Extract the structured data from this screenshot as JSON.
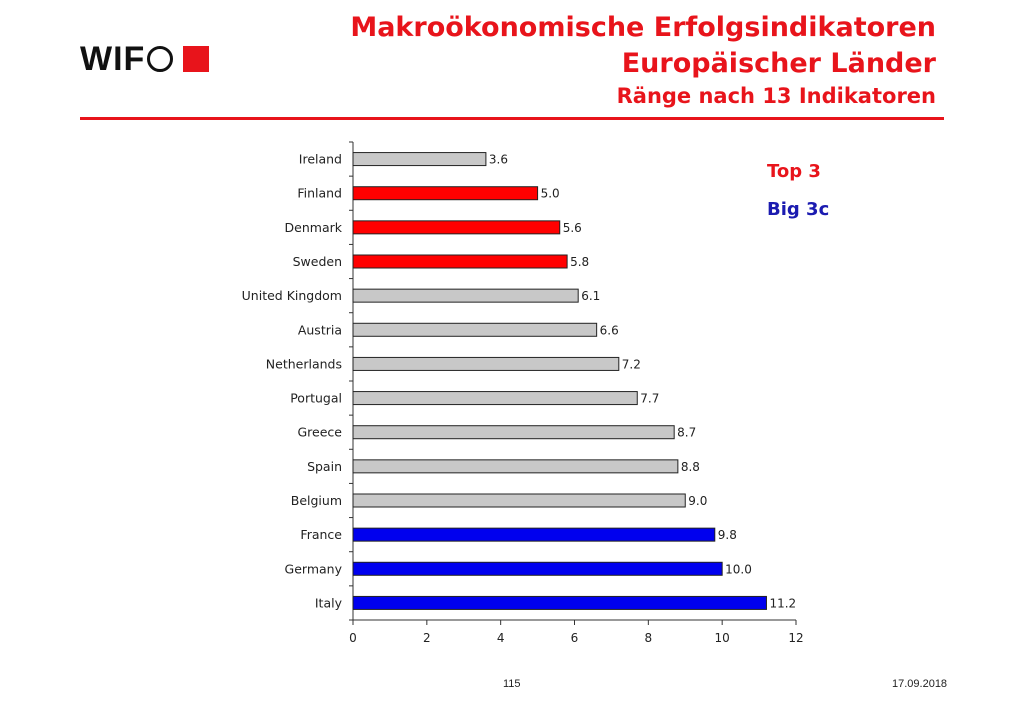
{
  "logo": {
    "text": "WIF"
  },
  "title": {
    "line1": "Makroökonomische Erfolgsindikatoren",
    "line2": "Europäischer Länder",
    "subtitle": "Ränge nach  13 Indikatoren"
  },
  "legend": {
    "top3": "Top 3",
    "big3c": "Big 3c"
  },
  "colors": {
    "top3": "#ff0000",
    "big3c": "#0000ee",
    "other": "#c8c8c8",
    "accent": "#e8141b"
  },
  "footer": {
    "page": "115",
    "date": "17.09.2018"
  },
  "chart_data": {
    "type": "bar",
    "orientation": "horizontal",
    "categories": [
      "Ireland",
      "Finland",
      "Denmark",
      "Sweden",
      "United Kingdom",
      "Austria",
      "Netherlands",
      "Portugal",
      "Greece",
      "Spain",
      "Belgium",
      "France",
      "Germany",
      "Italy"
    ],
    "values": [
      3.6,
      5.0,
      5.6,
      5.8,
      6.1,
      6.6,
      7.2,
      7.7,
      8.7,
      8.8,
      9.0,
      9.8,
      10.0,
      11.2
    ],
    "value_labels": [
      "3.6",
      "5.0",
      "5.6",
      "5.8",
      "6.1",
      "6.6",
      "7.2",
      "7.7",
      "8.7",
      "8.8",
      "9.0",
      "9.8",
      "10.0",
      "11.2"
    ],
    "groups": [
      "other",
      "top3",
      "top3",
      "top3",
      "other",
      "other",
      "other",
      "other",
      "other",
      "other",
      "other",
      "big3c",
      "big3c",
      "big3c"
    ],
    "xlim": [
      0,
      12
    ],
    "xticks": [
      0,
      2,
      4,
      6,
      8,
      10,
      12
    ],
    "grid": false,
    "legend_position": "top-right"
  }
}
